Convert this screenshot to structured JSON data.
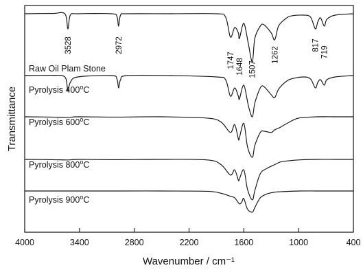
{
  "chart_data": {
    "type": "line",
    "title": "",
    "xlabel": "Wavenumber / cm⁻¹",
    "ylabel": "Transmittance",
    "xlim": [
      4000,
      400
    ],
    "x_reversed": true,
    "xticks": [
      4000,
      3400,
      2800,
      2200,
      1600,
      1000,
      400
    ],
    "y_ticks_shown": false,
    "grid": false,
    "stacked_offset_spectra": true,
    "peak_annotations": [
      3528,
      2972,
      1747,
      1648,
      1507,
      1262,
      817,
      719
    ],
    "series": [
      {
        "name": "Raw Oil Plam Stone",
        "points": [
          [
            4000,
            0.0
          ],
          [
            3700,
            0.01
          ],
          [
            3560,
            0.0
          ],
          [
            3528,
            -0.55
          ],
          [
            3500,
            -0.05
          ],
          [
            3420,
            0.0
          ],
          [
            3050,
            0.0
          ],
          [
            2990,
            -0.1
          ],
          [
            2972,
            -0.45
          ],
          [
            2950,
            -0.05
          ],
          [
            2880,
            0.0
          ],
          [
            2400,
            0.0
          ],
          [
            1900,
            0.0
          ],
          [
            1800,
            -0.12
          ],
          [
            1747,
            -0.85
          ],
          [
            1700,
            -0.5
          ],
          [
            1660,
            -0.7
          ],
          [
            1648,
            -0.9
          ],
          [
            1600,
            -0.35
          ],
          [
            1550,
            -1.1
          ],
          [
            1507,
            -1.75
          ],
          [
            1480,
            -0.9
          ],
          [
            1420,
            -0.45
          ],
          [
            1380,
            -0.4
          ],
          [
            1300,
            -0.7
          ],
          [
            1262,
            -0.95
          ],
          [
            1220,
            -0.45
          ],
          [
            1150,
            -0.2
          ],
          [
            1080,
            -0.08
          ],
          [
            950,
            -0.05
          ],
          [
            870,
            -0.12
          ],
          [
            817,
            -0.55
          ],
          [
            790,
            -0.3
          ],
          [
            760,
            -0.15
          ],
          [
            719,
            -0.45
          ],
          [
            690,
            -0.2
          ],
          [
            600,
            -0.05
          ],
          [
            400,
            0.0
          ]
        ]
      },
      {
        "name": "Pyrolysis 400°C",
        "points": [
          [
            4000,
            0.0
          ],
          [
            3700,
            0.01
          ],
          [
            3560,
            -0.05
          ],
          [
            3528,
            -0.55
          ],
          [
            3500,
            -0.25
          ],
          [
            3420,
            -0.05
          ],
          [
            3050,
            0.0
          ],
          [
            2990,
            -0.12
          ],
          [
            2972,
            -0.45
          ],
          [
            2950,
            -0.15
          ],
          [
            2880,
            0.0
          ],
          [
            2400,
            0.0
          ],
          [
            1900,
            -0.05
          ],
          [
            1800,
            -0.15
          ],
          [
            1747,
            -0.75
          ],
          [
            1700,
            -0.45
          ],
          [
            1660,
            -0.75
          ],
          [
            1648,
            -0.85
          ],
          [
            1600,
            -0.35
          ],
          [
            1550,
            -1.1
          ],
          [
            1507,
            -1.5
          ],
          [
            1480,
            -1.0
          ],
          [
            1420,
            -0.45
          ],
          [
            1380,
            -0.4
          ],
          [
            1300,
            -0.7
          ],
          [
            1262,
            -0.8
          ],
          [
            1220,
            -0.5
          ],
          [
            1150,
            -0.25
          ],
          [
            1080,
            -0.12
          ],
          [
            950,
            -0.05
          ],
          [
            870,
            -0.12
          ],
          [
            817,
            -0.45
          ],
          [
            790,
            -0.25
          ],
          [
            760,
            -0.15
          ],
          [
            719,
            -0.35
          ],
          [
            690,
            -0.15
          ],
          [
            600,
            -0.05
          ],
          [
            400,
            0.0
          ]
        ]
      },
      {
        "name": "Pyrolysis 600°C",
        "points": [
          [
            4000,
            0.0
          ],
          [
            3700,
            -0.01
          ],
          [
            3528,
            -0.02
          ],
          [
            3400,
            0.0
          ],
          [
            3000,
            -0.01
          ],
          [
            2500,
            0.0
          ],
          [
            2000,
            -0.05
          ],
          [
            1850,
            -0.2
          ],
          [
            1747,
            -0.6
          ],
          [
            1700,
            -0.3
          ],
          [
            1660,
            -0.85
          ],
          [
            1648,
            -0.8
          ],
          [
            1600,
            -0.25
          ],
          [
            1560,
            -1.15
          ],
          [
            1507,
            -1.55
          ],
          [
            1480,
            -1.1
          ],
          [
            1420,
            -0.6
          ],
          [
            1380,
            -0.55
          ],
          [
            1300,
            -0.6
          ],
          [
            1262,
            -0.5
          ],
          [
            1200,
            -0.4
          ],
          [
            1100,
            -0.2
          ],
          [
            1000,
            -0.05
          ],
          [
            800,
            0.0
          ],
          [
            600,
            0.0
          ],
          [
            400,
            0.0
          ]
        ]
      },
      {
        "name": "Pyrolysis 800°C",
        "points": [
          [
            4000,
            0.0
          ],
          [
            3700,
            -0.01
          ],
          [
            3528,
            -0.02
          ],
          [
            3400,
            0.0
          ],
          [
            3000,
            -0.01
          ],
          [
            2500,
            0.0
          ],
          [
            2000,
            -0.02
          ],
          [
            1850,
            -0.2
          ],
          [
            1747,
            -0.6
          ],
          [
            1700,
            -0.4
          ],
          [
            1660,
            -0.8
          ],
          [
            1648,
            -0.75
          ],
          [
            1600,
            -0.4
          ],
          [
            1560,
            -1.15
          ],
          [
            1507,
            -1.55
          ],
          [
            1480,
            -1.2
          ],
          [
            1420,
            -0.55
          ],
          [
            1350,
            -0.35
          ],
          [
            1262,
            -0.2
          ],
          [
            1200,
            -0.1
          ],
          [
            1100,
            -0.05
          ],
          [
            1000,
            -0.02
          ],
          [
            800,
            0.0
          ],
          [
            600,
            0.0
          ],
          [
            400,
            0.0
          ]
        ]
      },
      {
        "name": "Pyrolysis 900°C",
        "points": [
          [
            4000,
            0.0
          ],
          [
            3700,
            0.0
          ],
          [
            3400,
            0.0
          ],
          [
            3000,
            0.0
          ],
          [
            2500,
            0.0
          ],
          [
            2000,
            -0.02
          ],
          [
            1850,
            -0.15
          ],
          [
            1747,
            -0.35
          ],
          [
            1700,
            -0.45
          ],
          [
            1648,
            -0.85
          ],
          [
            1620,
            -0.7
          ],
          [
            1600,
            -0.5
          ],
          [
            1560,
            -1.2
          ],
          [
            1507,
            -1.4
          ],
          [
            1480,
            -1.1
          ],
          [
            1420,
            -0.45
          ],
          [
            1350,
            -0.2
          ],
          [
            1262,
            -0.08
          ],
          [
            1200,
            -0.05
          ],
          [
            1000,
            0.0
          ],
          [
            800,
            0.0
          ],
          [
            600,
            0.0
          ],
          [
            400,
            0.0
          ]
        ]
      }
    ]
  }
}
